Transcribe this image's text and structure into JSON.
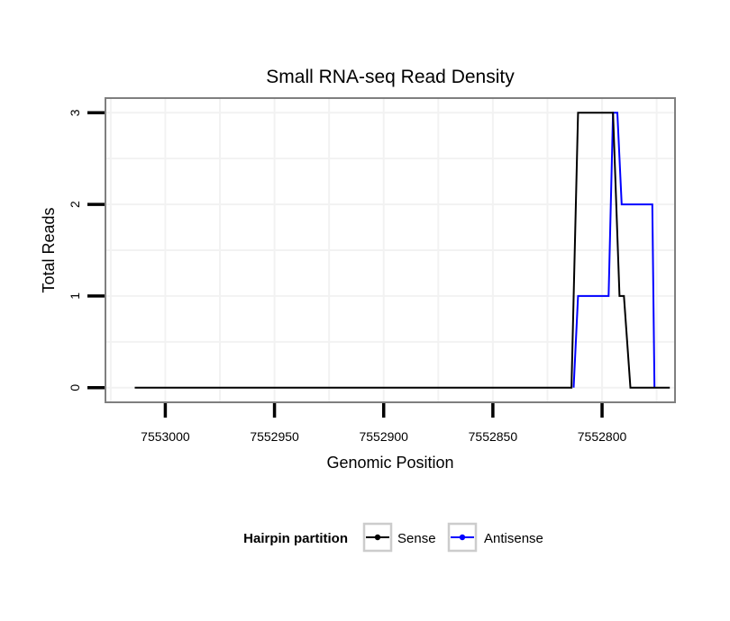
{
  "chart_data": {
    "type": "line",
    "title": "Small RNA-seq Read Density",
    "xlabel": "Genomic Position",
    "ylabel": "Total Reads",
    "x_reversed": true,
    "xlim": [
      7553027,
      7552767
    ],
    "ylim": [
      -0.15,
      3.15
    ],
    "x_ticks": [
      7553000,
      7552950,
      7552900,
      7552850,
      7552800
    ],
    "x_tick_labels": [
      "7553000",
      "7552950",
      "7552900",
      "7552850",
      "7552800"
    ],
    "y_ticks": [
      0,
      1,
      2,
      3
    ],
    "y_tick_labels": [
      "0",
      "1",
      "2",
      "3"
    ],
    "grid": true,
    "legend": {
      "title": "Hairpin partition",
      "position": "bottom"
    },
    "series": [
      {
        "name": "Sense",
        "color": "#000000",
        "x": [
          7553014,
          7552814,
          7552811,
          7552795,
          7552792,
          7552790,
          7552787,
          7552782,
          7552769
        ],
        "y": [
          0,
          0,
          3,
          3,
          1,
          1,
          0,
          0,
          0
        ]
      },
      {
        "name": "Antisense",
        "color": "#0000ff",
        "x": [
          7552813,
          7552811,
          7552797,
          7552795,
          7552794,
          7552793,
          7552791,
          7552777,
          7552776
        ],
        "y": [
          0,
          1,
          1,
          3,
          3,
          3,
          2,
          2,
          0
        ]
      }
    ]
  }
}
